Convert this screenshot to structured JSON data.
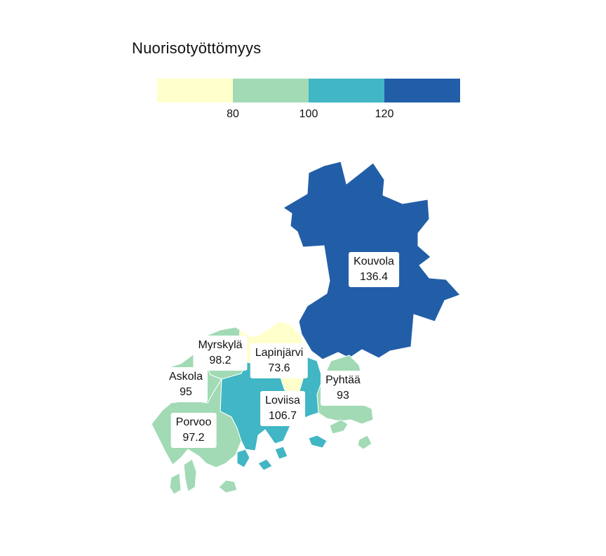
{
  "title": "Nuorisotyöttömyys",
  "legend": {
    "colors": [
      "#ffffcc",
      "#a1dab4",
      "#41b6c4",
      "#225ea8"
    ],
    "ticks": [
      "80",
      "100",
      "120"
    ]
  },
  "municipalities": [
    {
      "name": "Kouvola",
      "value": "136.4",
      "color": "#225ea8"
    },
    {
      "name": "Myrskylä",
      "value": "98.2",
      "color": "#a1dab4"
    },
    {
      "name": "Lapinjärvi",
      "value": "73.6",
      "color": "#ffffcc"
    },
    {
      "name": "Askola",
      "value": "95",
      "color": "#a1dab4"
    },
    {
      "name": "Pyhtää",
      "value": "93",
      "color": "#a1dab4"
    },
    {
      "name": "Loviisa",
      "value": "106.7",
      "color": "#41b6c4"
    },
    {
      "name": "Porvoo",
      "value": "97.2",
      "color": "#a1dab4"
    }
  ]
}
